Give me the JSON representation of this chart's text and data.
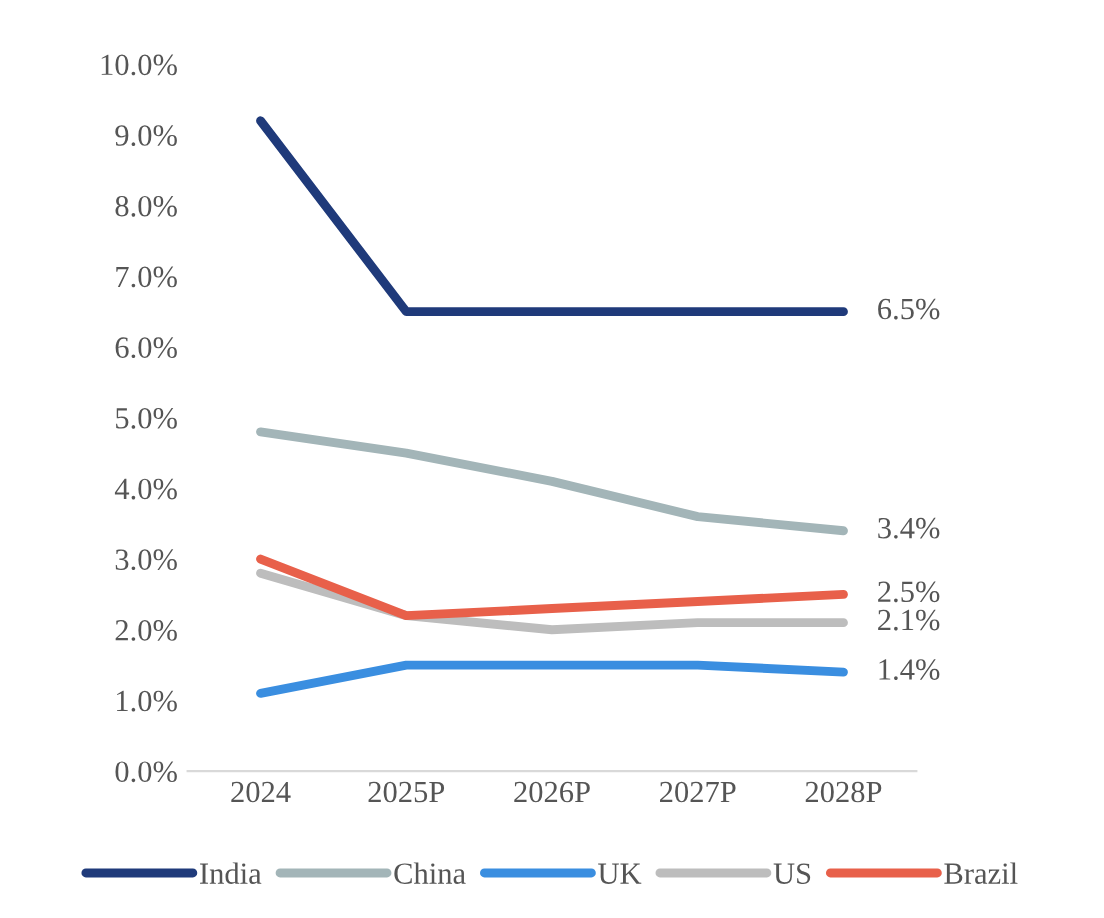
{
  "chart_data": {
    "type": "line",
    "categories": [
      "2024",
      "2025P",
      "2026P",
      "2027P",
      "2028P"
    ],
    "series": [
      {
        "name": "India",
        "color": "#1f3a7a",
        "values": [
          9.2,
          6.5,
          6.5,
          6.5,
          6.5
        ],
        "value_labels": [
          null,
          null,
          null,
          null,
          "6.5%"
        ]
      },
      {
        "name": "China",
        "color": "#a3b5b8",
        "values": [
          4.8,
          4.5,
          4.1,
          3.6,
          3.4
        ],
        "value_labels": [
          null,
          null,
          null,
          null,
          "3.4%"
        ]
      },
      {
        "name": "UK",
        "color": "#3a8ee0",
        "values": [
          1.1,
          1.5,
          1.5,
          1.5,
          1.4
        ],
        "value_labels": [
          null,
          null,
          null,
          null,
          "1.4%"
        ]
      },
      {
        "name": "US",
        "color": "#bdbdbd",
        "values": [
          2.8,
          2.2,
          2.0,
          2.1,
          2.1
        ],
        "value_labels": [
          null,
          null,
          null,
          null,
          "2.1%"
        ]
      },
      {
        "name": "Brazil",
        "color": "#e8604a",
        "values": [
          3.0,
          2.2,
          2.3,
          2.4,
          2.5
        ],
        "value_labels": [
          null,
          null,
          null,
          null,
          "2.5%"
        ]
      }
    ],
    "ylim": [
      0,
      10
    ],
    "yticks": [
      {
        "value": 0,
        "label": "0.0%"
      },
      {
        "value": 1,
        "label": "1.0%"
      },
      {
        "value": 2,
        "label": "2.0%"
      },
      {
        "value": 3,
        "label": "3.0%"
      },
      {
        "value": 4,
        "label": "4.0%"
      },
      {
        "value": 5,
        "label": "5.0%"
      },
      {
        "value": 6,
        "label": "6.0%"
      },
      {
        "value": 7,
        "label": "7.0%"
      },
      {
        "value": 8,
        "label": "8.0%"
      },
      {
        "value": 9,
        "label": "9.0%"
      },
      {
        "value": 10,
        "label": "10.0%"
      }
    ],
    "grid": false,
    "legend": "bottom",
    "marker": "none",
    "line_style": "solid"
  }
}
